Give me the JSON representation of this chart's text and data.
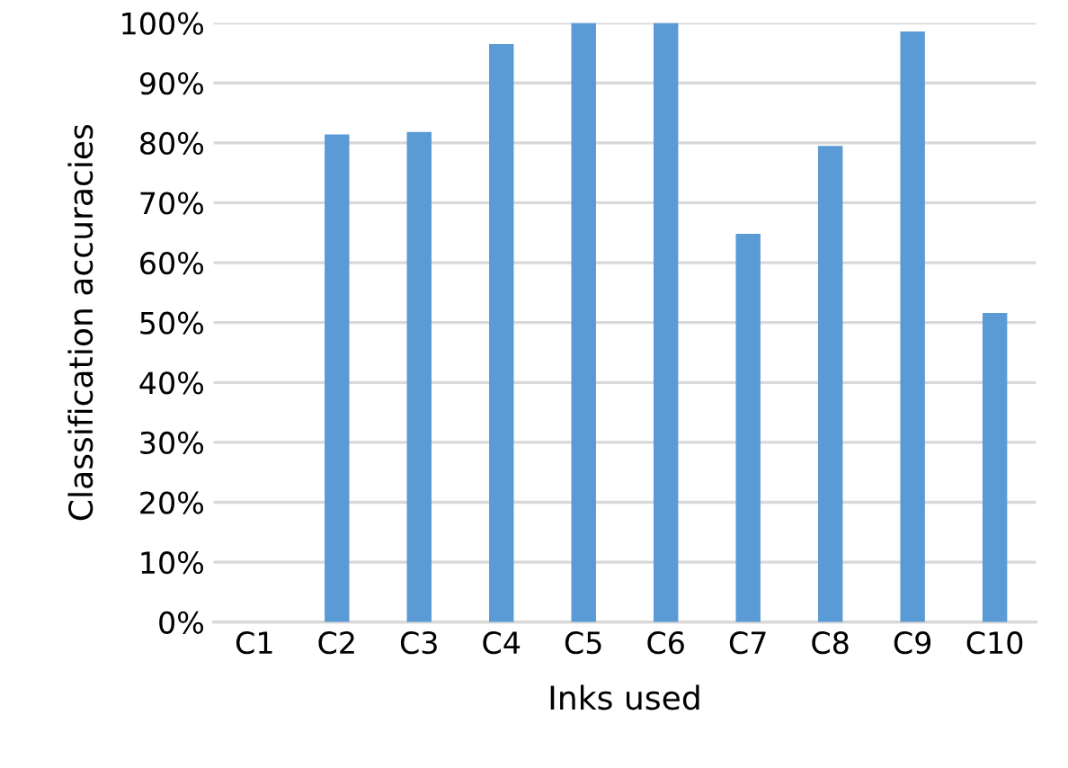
{
  "chart_data": {
    "type": "bar",
    "xlabel": "Inks used",
    "ylabel": "Classification accuracies",
    "categories": [
      "C1",
      "C2",
      "C3",
      "C4",
      "C5",
      "C6",
      "C7",
      "C8",
      "C9",
      "C10"
    ],
    "values": [
      0,
      81.4,
      81.8,
      96.5,
      100,
      100,
      64.8,
      79.5,
      98.6,
      51.6
    ],
    "color": "#5b9bd5",
    "ylim": [
      0,
      100
    ],
    "yticks": [
      {
        "value": 0,
        "label": "0%"
      },
      {
        "value": 10,
        "label": "10%"
      },
      {
        "value": 20,
        "label": "20%"
      },
      {
        "value": 30,
        "label": "30%"
      },
      {
        "value": 40,
        "label": "40%"
      },
      {
        "value": 50,
        "label": "50%"
      },
      {
        "value": 60,
        "label": "60%"
      },
      {
        "value": 70,
        "label": "70%"
      },
      {
        "value": 80,
        "label": "80%"
      },
      {
        "value": 90,
        "label": "90%"
      },
      {
        "value": 100,
        "label": "100%"
      }
    ],
    "grid": "y"
  }
}
